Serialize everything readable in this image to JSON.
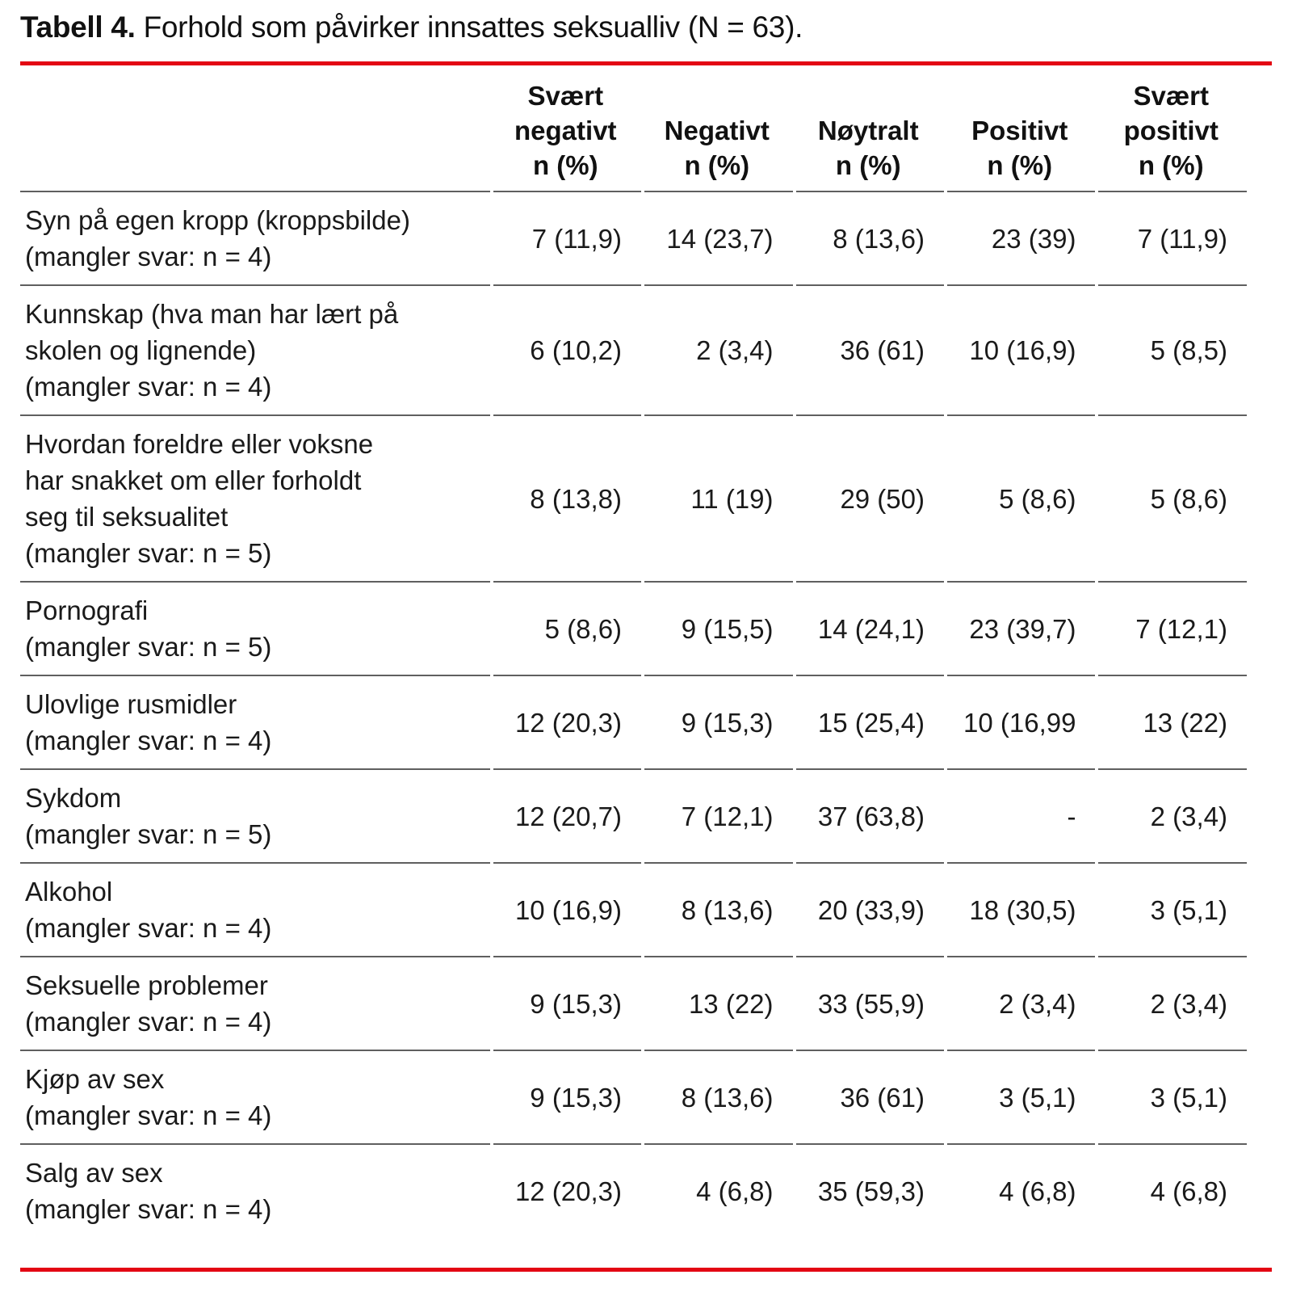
{
  "title": {
    "bold": "Tabell 4.",
    "rest": " Forhold som påvirker innsattes seksualliv (N = 63)."
  },
  "colors": {
    "accent_red": "#e30613",
    "rule_gray": "#5f5f5f",
    "text": "#1a1a1a"
  },
  "chart_data": {
    "type": "table",
    "title": "Tabell 4. Forhold som påvirker innsattes seksualliv (N = 63).",
    "headers": [
      "Svært\nnegativt\nn (%)",
      "Negativt\nn (%)",
      "Nøytralt\nn (%)",
      "Positivt\nn (%)",
      "Svært\npositivt\nn (%)"
    ],
    "rows": [
      {
        "label": "Syn på egen kropp (kroppsbilde)",
        "note": "(mangler svar: n = 4)",
        "values": [
          "7 (11,9)",
          "14 (23,7)",
          "8 (13,6)",
          "23 (39)",
          "7 (11,9)"
        ]
      },
      {
        "label": "Kunnskap (hva man har lært på\nskolen og lignende)",
        "note": "(mangler svar: n = 4)",
        "values": [
          "6 (10,2)",
          "2 (3,4)",
          "36 (61)",
          "10 (16,9)",
          "5 (8,5)"
        ]
      },
      {
        "label": "Hvordan foreldre eller voksne\nhar snakket om eller forholdt\nseg til seksualitet",
        "note": "(mangler svar: n = 5)",
        "values": [
          "8 (13,8)",
          "11 (19)",
          "29 (50)",
          "5 (8,6)",
          "5 (8,6)"
        ]
      },
      {
        "label": "Pornografi",
        "note": "(mangler svar: n = 5)",
        "values": [
          "5 (8,6)",
          "9 (15,5)",
          "14 (24,1)",
          "23 (39,7)",
          "7 (12,1)"
        ]
      },
      {
        "label": "Ulovlige rusmidler",
        "note": "(mangler svar: n = 4)",
        "values": [
          "12 (20,3)",
          "9 (15,3)",
          "15 (25,4)",
          "10 (16,99",
          "13 (22)"
        ]
      },
      {
        "label": "Sykdom",
        "note": "(mangler svar: n = 5)",
        "values": [
          "12 (20,7)",
          "7 (12,1)",
          "37 (63,8)",
          "-",
          "2 (3,4)"
        ]
      },
      {
        "label": "Alkohol",
        "note": "(mangler svar: n = 4)",
        "values": [
          "10 (16,9)",
          "8 (13,6)",
          "20 (33,9)",
          "18 (30,5)",
          "3 (5,1)"
        ]
      },
      {
        "label": "Seksuelle problemer",
        "note": "(mangler svar: n = 4)",
        "values": [
          "9 (15,3)",
          "13 (22)",
          "33 (55,9)",
          "2 (3,4)",
          "2 (3,4)"
        ]
      },
      {
        "label": "Kjøp av sex",
        "note": "(mangler svar: n = 4)",
        "values": [
          "9 (15,3)",
          "8 (13,6)",
          "36 (61)",
          "3 (5,1)",
          "3 (5,1)"
        ]
      },
      {
        "label": "Salg av sex",
        "note": "(mangler svar: n = 4)",
        "values": [
          "12 (20,3)",
          "4 (6,8)",
          "35 (59,3)",
          "4 (6,8)",
          "4 (6,8)"
        ]
      }
    ]
  }
}
